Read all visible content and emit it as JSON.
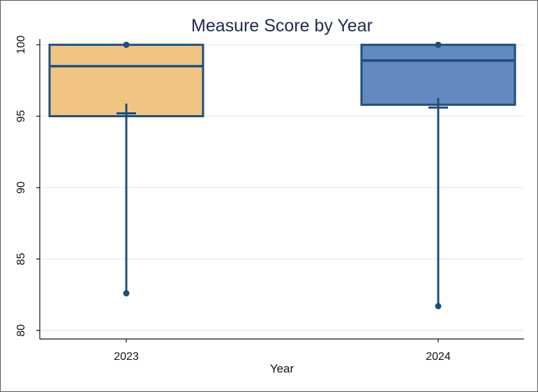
{
  "chart_data": {
    "type": "box",
    "title": "Measure Score by Year",
    "xlabel": "Year",
    "ylabel": "",
    "ylim": [
      79.4,
      100.4
    ],
    "yticks": [
      80,
      85,
      90,
      95,
      100
    ],
    "ytick_labels": [
      "80",
      "85",
      "90",
      "95",
      "100"
    ],
    "categories": [
      "2023",
      "2024"
    ],
    "grid": true,
    "legend": "none",
    "series": [
      {
        "category": "2023",
        "min": 82.6,
        "q1": 95.0,
        "median": 98.5,
        "q3": 100.0,
        "max": 100.0,
        "mean": 95.2,
        "fill": "#f0c584",
        "stroke": "#1f4e79"
      },
      {
        "category": "2024",
        "min": 81.7,
        "q1": 95.8,
        "median": 98.9,
        "q3": 100.0,
        "max": 100.0,
        "mean": 95.6,
        "fill": "#6289c0",
        "stroke": "#1f4e79"
      }
    ],
    "colors": {
      "axis": "#111111",
      "grid": "#e4eae8",
      "whisker": "#1f4e79",
      "title": "#1f2a4f"
    }
  }
}
